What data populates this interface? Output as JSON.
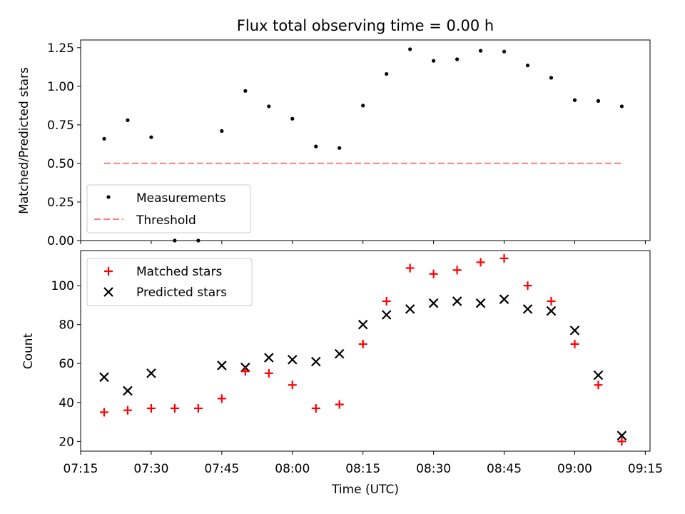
{
  "chart_data": [
    {
      "type": "scatter",
      "title": "Flux total observing time = 0.00 h",
      "ylabel": "Matched/Predicted stars",
      "xlabel": "",
      "ylim": [
        0.0,
        1.3
      ],
      "yticks": [
        "0.00",
        "0.25",
        "0.50",
        "0.75",
        "1.00",
        "1.25"
      ],
      "ytick_values": [
        0.0,
        0.25,
        0.5,
        0.75,
        1.0,
        1.25
      ],
      "xlim": [
        "07:15",
        "09:16"
      ],
      "x": [
        "07:20",
        "07:25",
        "07:30",
        "07:35",
        "07:40",
        "07:45",
        "07:50",
        "07:55",
        "08:00",
        "08:05",
        "08:10",
        "08:15",
        "08:20",
        "08:25",
        "08:30",
        "08:35",
        "08:40",
        "08:45",
        "08:50",
        "08:55",
        "09:00",
        "09:05",
        "09:10"
      ],
      "series": [
        {
          "name": "Measurements",
          "marker": "dot",
          "color": "#000000",
          "values": [
            0.66,
            0.78,
            0.67,
            0.0,
            0.0,
            0.71,
            0.97,
            0.87,
            0.79,
            0.61,
            0.6,
            0.875,
            1.08,
            1.24,
            1.165,
            1.175,
            1.23,
            1.225,
            1.135,
            1.055,
            0.91,
            0.905,
            0.87
          ]
        },
        {
          "name": "Threshold",
          "marker": "dashed-line",
          "color": "#ff7f7f",
          "x": [
            "07:20",
            "09:10"
          ],
          "values": [
            0.5,
            0.5
          ]
        }
      ],
      "legend": "lower-left",
      "grid": false
    },
    {
      "type": "scatter",
      "title": "",
      "ylabel": "Count",
      "xlabel": "Time (UTC)",
      "ylim": [
        15,
        118
      ],
      "yticks": [
        "20",
        "40",
        "60",
        "80",
        "100"
      ],
      "ytick_values": [
        20,
        40,
        60,
        80,
        100
      ],
      "xlim": [
        "07:15",
        "09:16"
      ],
      "xticks": [
        "07:15",
        "07:30",
        "07:45",
        "08:00",
        "08:15",
        "08:30",
        "08:45",
        "09:00",
        "09:15"
      ],
      "x": [
        "07:20",
        "07:25",
        "07:30",
        "07:35",
        "07:40",
        "07:45",
        "07:50",
        "07:55",
        "08:00",
        "08:05",
        "08:10",
        "08:15",
        "08:20",
        "08:25",
        "08:30",
        "08:35",
        "08:40",
        "08:45",
        "08:50",
        "08:55",
        "09:00",
        "09:05",
        "09:10"
      ],
      "series": [
        {
          "name": "Matched stars",
          "marker": "plus",
          "color": "#ff0000",
          "values": [
            35,
            36,
            37,
            37,
            37,
            42,
            56,
            55,
            49,
            37,
            39,
            70,
            92,
            109,
            106,
            108,
            112,
            114,
            100,
            92,
            70,
            49,
            20
          ]
        },
        {
          "name": "Predicted stars",
          "marker": "x",
          "color": "#000000",
          "x": [
            "07:20",
            "07:25",
            "07:30",
            "07:45",
            "07:50",
            "07:55",
            "08:00",
            "08:05",
            "08:10",
            "08:15",
            "08:20",
            "08:25",
            "08:30",
            "08:35",
            "08:40",
            "08:45",
            "08:50",
            "08:55",
            "09:00",
            "09:05",
            "09:10"
          ],
          "values": [
            53,
            46,
            55,
            59,
            58,
            63,
            62,
            61,
            65,
            80,
            85,
            88,
            91,
            92,
            91,
            93,
            88,
            87,
            77,
            54,
            23
          ]
        }
      ],
      "legend": "upper-left",
      "grid": false
    }
  ]
}
